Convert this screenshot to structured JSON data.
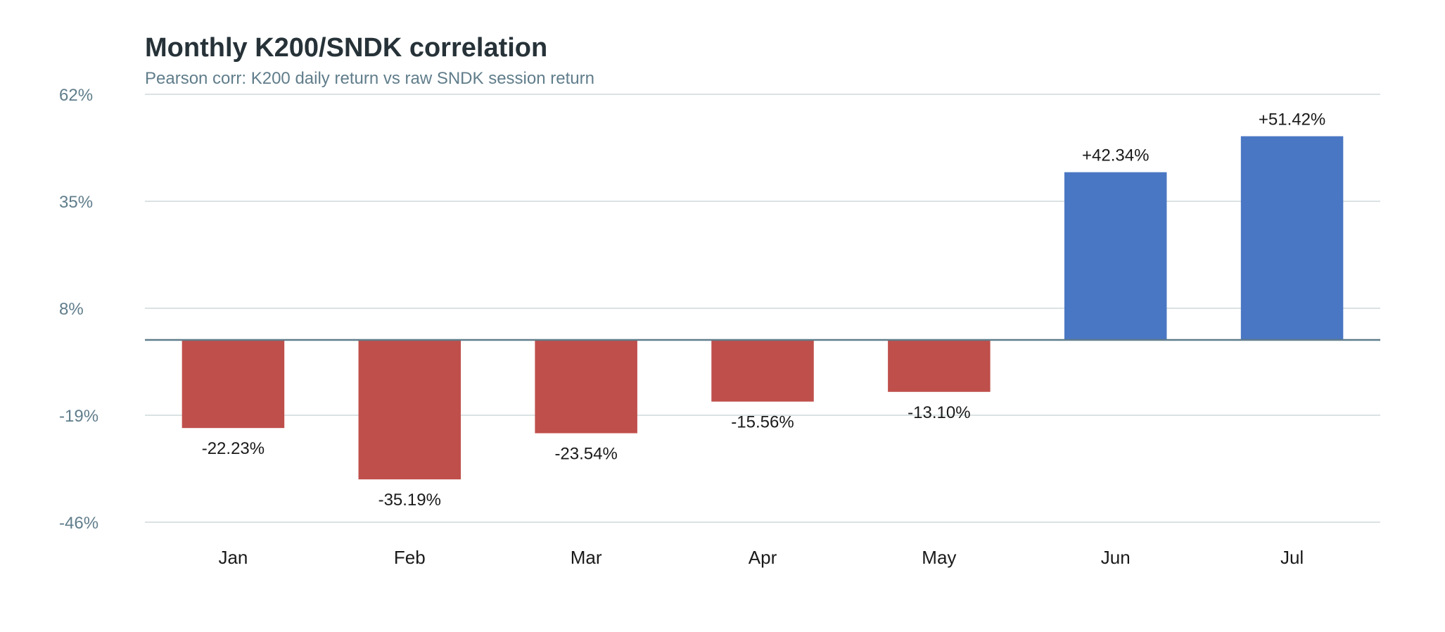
{
  "chart_data": {
    "type": "bar",
    "title": "Monthly K200/SNDK correlation",
    "subtitle": "Pearson corr: K200 daily return vs raw SNDK session return",
    "xlabel": "",
    "ylabel": "",
    "categories": [
      "Jan",
      "Feb",
      "Mar",
      "Apr",
      "May",
      "Jun",
      "Jul"
    ],
    "values": [
      -22.23,
      -35.19,
      -23.54,
      -15.56,
      -13.1,
      42.34,
      51.42
    ],
    "value_labels": [
      "-22.23%",
      "-35.19%",
      "-23.54%",
      "-15.56%",
      "-13.10%",
      "+42.34%",
      "+51.42%"
    ],
    "ylim": [
      -46,
      62
    ],
    "yticks": [
      62,
      35,
      8,
      -19,
      -46
    ],
    "ytick_labels": [
      "62%",
      "35%",
      "8%",
      "-19%",
      "-46%"
    ],
    "grid": true,
    "legend": "none",
    "colors": {
      "positive": "#4a77c3",
      "negative": "#bf4f4b",
      "grid": "#cfd8dc",
      "zero_line": "#607d8b",
      "tick_text": "#607d8b",
      "label_text": "#1a1a1a"
    }
  }
}
